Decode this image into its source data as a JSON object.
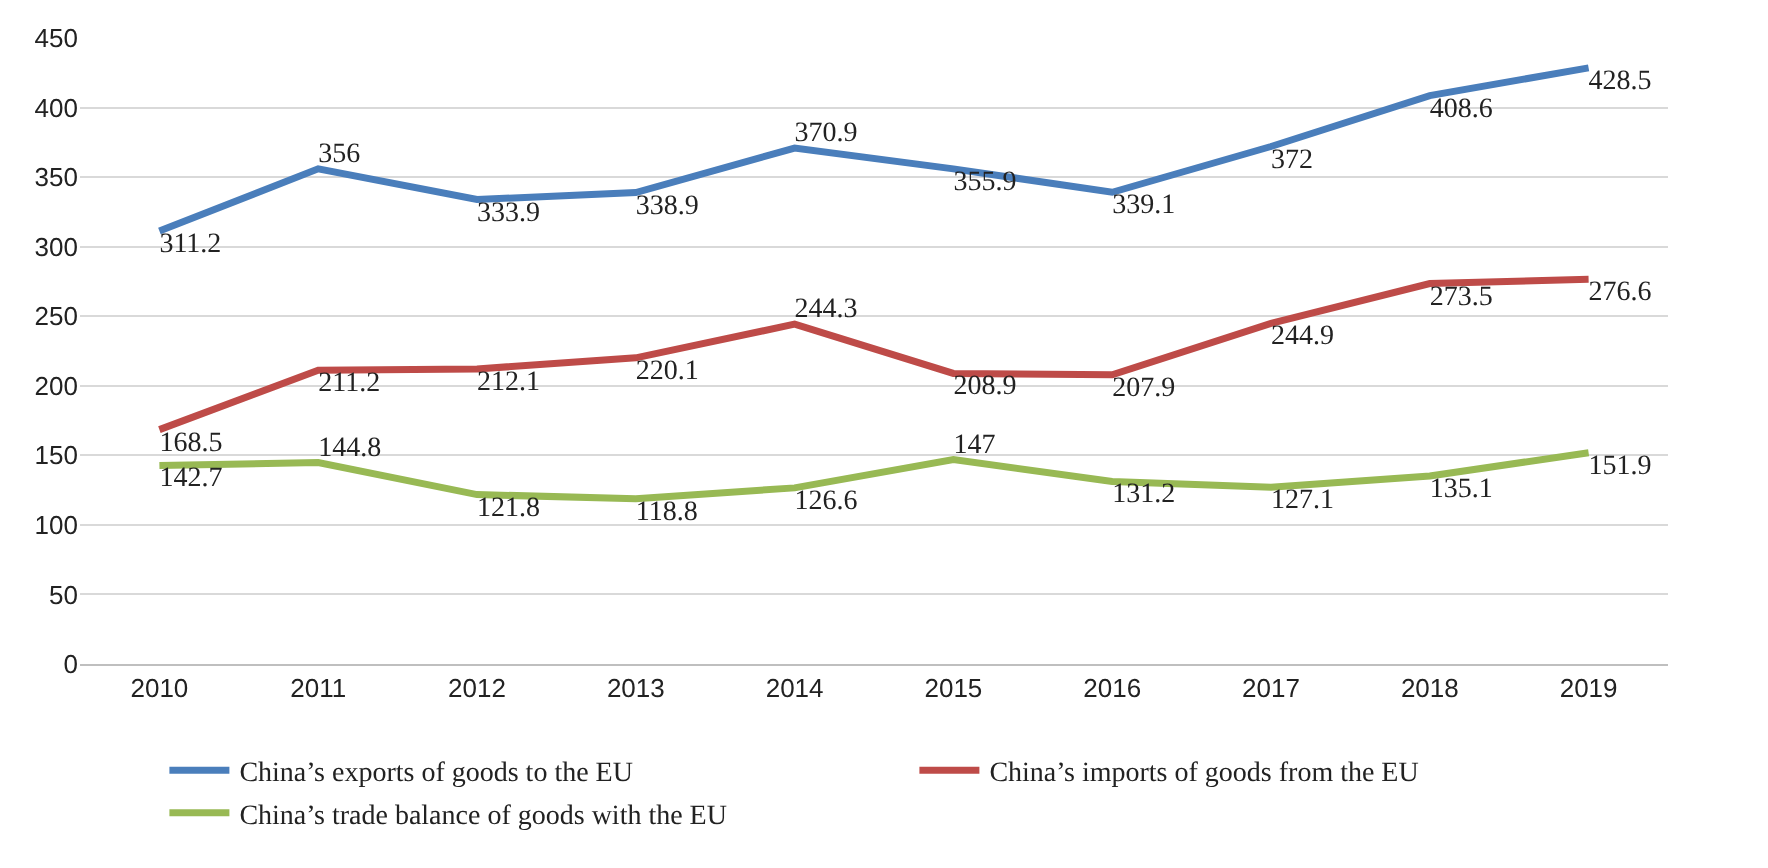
{
  "chart_data": {
    "type": "line",
    "categories": [
      "2010",
      "2011",
      "2012",
      "2013",
      "2014",
      "2015",
      "2016",
      "2017",
      "2018",
      "2019"
    ],
    "series": [
      {
        "name": "China’s exports of goods to the EU",
        "color": "#4a7ebb",
        "values": [
          311.2,
          356,
          333.9,
          338.9,
          370.9,
          355.9,
          339.1,
          372,
          408.6,
          428.5
        ]
      },
      {
        "name": "China’s imports of goods from the EU",
        "color": "#be4b48",
        "values": [
          168.5,
          211.2,
          212.1,
          220.1,
          244.3,
          208.9,
          207.9,
          244.9,
          273.5,
          276.6
        ]
      },
      {
        "name": "China’s trade balance of goods with the EU",
        "color": "#98b954",
        "values": [
          142.7,
          144.8,
          121.8,
          118.8,
          126.6,
          147,
          131.2,
          127.1,
          135.1,
          151.9
        ]
      }
    ],
    "ylim": [
      0,
      450
    ],
    "yticks": [
      0,
      50,
      100,
      150,
      200,
      250,
      300,
      350,
      400,
      450
    ],
    "grid": "y",
    "legend": "bottom",
    "data_labels": true,
    "marker": "none",
    "line_style": "solid"
  }
}
